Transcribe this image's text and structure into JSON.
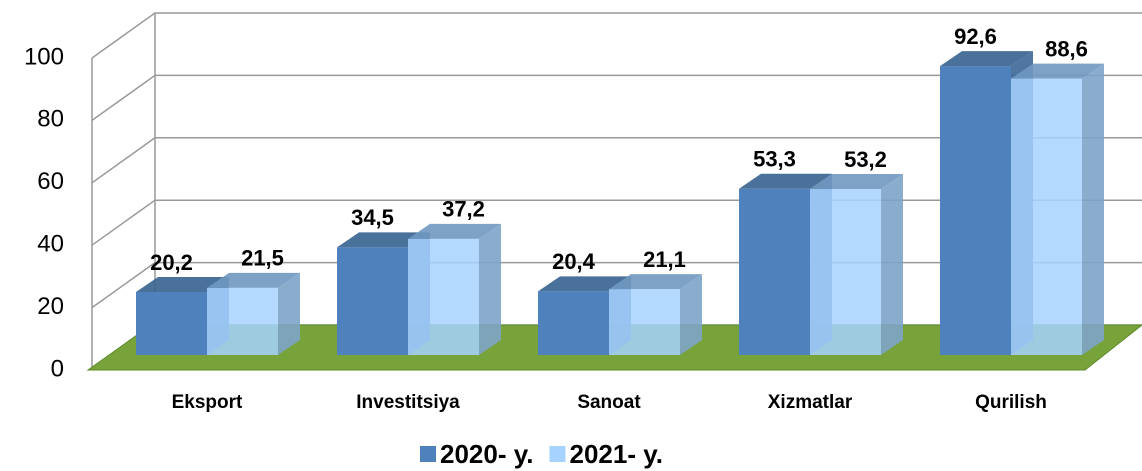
{
  "chart_data": {
    "type": "bar",
    "categories": [
      "Eksport",
      "Investitsiya",
      "Sanoat",
      "Xizmatlar",
      "Qurilish"
    ],
    "series": [
      {
        "name": "2020- y.",
        "color": "#4f81bd",
        "values": [
          20.2,
          34.5,
          20.4,
          53.3,
          92.6
        ],
        "value_labels": [
          "20,2",
          "34,5",
          "20,4",
          "53,3",
          "92,6"
        ]
      },
      {
        "name": "2021- y.",
        "color": "#a6d2ff",
        "values": [
          21.5,
          37.2,
          21.1,
          53.2,
          88.6
        ],
        "value_labels": [
          "21,5",
          "37,2",
          "21,1",
          "53,2",
          "88,6"
        ]
      }
    ],
    "ylim": [
      0,
      100
    ],
    "yticks": [
      0,
      20,
      40,
      60,
      80,
      100
    ],
    "grid": true,
    "legend": "bottom",
    "floor_color": "#77a33a"
  }
}
